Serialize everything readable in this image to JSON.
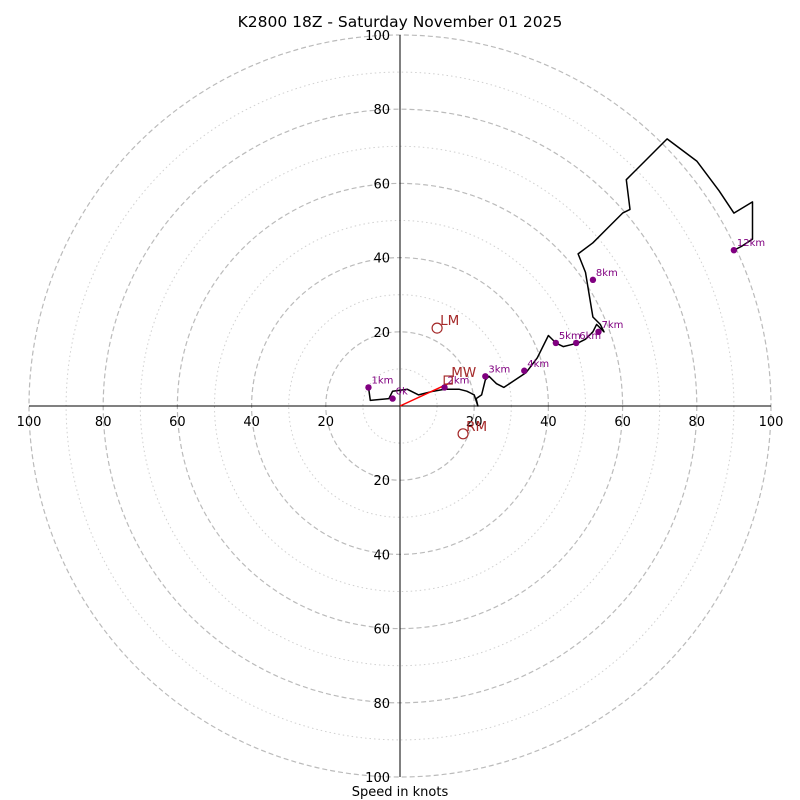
{
  "chart_data": {
    "type": "line",
    "title": "K2800 18Z - Saturday November 01 2025",
    "xlabel": "Speed in knots",
    "ylabel": "",
    "xlim": [
      -100,
      100
    ],
    "ylim": [
      -100,
      100
    ],
    "ring_major": [
      20,
      40,
      60,
      80,
      100
    ],
    "ring_minor": [
      10,
      30,
      50,
      70,
      90
    ],
    "ticks": {
      "x_left": [
        "100",
        "80",
        "60",
        "40",
        "20"
      ],
      "x_right": [
        "20",
        "40",
        "60",
        "80",
        "100"
      ],
      "y_top": [
        "20",
        "40",
        "60",
        "80",
        "100"
      ],
      "y_bottom": [
        "20",
        "40",
        "60",
        "80",
        "100"
      ]
    },
    "colors": {
      "hodograph": "#000000",
      "height_marker": "#800080",
      "storm_marker": "#a52a2a",
      "mean_wind_vector": "#ff0000",
      "grid": "#bbbbbb"
    },
    "hodograph": {
      "name": "hodograph",
      "x": [
        -8.5,
        -8,
        -3,
        -2,
        2,
        3,
        5,
        7,
        9,
        12,
        14,
        16,
        18,
        19,
        20,
        21,
        20.5,
        22,
        23,
        24,
        26,
        28,
        31,
        34,
        37,
        40,
        42,
        44,
        46,
        48,
        50,
        52,
        53,
        55,
        54,
        52,
        51,
        50,
        48,
        52,
        56,
        60,
        62,
        61,
        66,
        72,
        80,
        86,
        90,
        95,
        95,
        92,
        90
      ],
      "y": [
        5,
        1.5,
        2,
        4,
        4.5,
        4,
        3,
        3.5,
        4,
        4.5,
        4.5,
        4.5,
        4,
        3.5,
        3,
        0,
        2,
        3,
        7,
        8,
        6,
        5,
        7,
        9,
        13,
        19,
        17,
        16,
        16.5,
        17,
        18,
        20,
        22,
        20,
        22,
        24,
        30,
        36,
        41,
        44,
        48,
        52,
        53,
        61,
        66,
        72,
        66,
        58,
        52,
        55,
        45,
        43,
        42
      ]
    },
    "height_markers": [
      {
        "label": "0k",
        "x": -2,
        "y": 2
      },
      {
        "label": "1km",
        "x": -8.5,
        "y": 5
      },
      {
        "label": "2km",
        "x": 12,
        "y": 5
      },
      {
        "label": "3km",
        "x": 23,
        "y": 8
      },
      {
        "label": "4km",
        "x": 33.5,
        "y": 9.5
      },
      {
        "label": "5km",
        "x": 42,
        "y": 17
      },
      {
        "label": "6km",
        "x": 47.5,
        "y": 17
      },
      {
        "label": "7km",
        "x": 53.5,
        "y": 20
      },
      {
        "label": "8km",
        "x": 52,
        "y": 34
      },
      {
        "label": "12km",
        "x": 90,
        "y": 42
      }
    ],
    "storm_motion": [
      {
        "label": "LM",
        "x": 10,
        "y": 21,
        "symbol": "circle"
      },
      {
        "label": "RM",
        "x": 17,
        "y": -7.5,
        "symbol": "circle"
      },
      {
        "label": "MW",
        "x": 13,
        "y": 7,
        "symbol": "square"
      }
    ],
    "mean_wind_vector": {
      "from": [
        0,
        0
      ],
      "to": [
        13,
        6
      ]
    }
  }
}
